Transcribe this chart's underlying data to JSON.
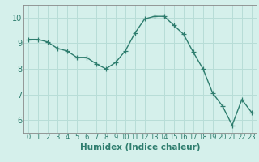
{
  "x": [
    0,
    1,
    2,
    3,
    4,
    5,
    6,
    7,
    8,
    9,
    10,
    11,
    12,
    13,
    14,
    15,
    16,
    17,
    18,
    19,
    20,
    21,
    22,
    23
  ],
  "y": [
    9.15,
    9.15,
    9.05,
    8.8,
    8.7,
    8.45,
    8.45,
    8.2,
    8.0,
    8.25,
    8.7,
    9.4,
    9.95,
    10.05,
    10.05,
    9.7,
    9.35,
    8.65,
    8.0,
    7.05,
    6.55,
    5.8,
    6.8,
    6.3
  ],
  "line_color": "#2e7d6e",
  "marker": "+",
  "markersize": 4,
  "linewidth": 1.0,
  "background_color": "#d5f0eb",
  "grid_color": "#b8ddd7",
  "xlabel": "Humidex (Indice chaleur)",
  "xlabel_fontsize": 7.5,
  "xlabel_fontweight": "bold",
  "ylim": [
    5.5,
    10.5
  ],
  "xlim": [
    -0.5,
    23.5
  ],
  "yticks": [
    6,
    7,
    8,
    9,
    10
  ],
  "xtick_fontsize": 6,
  "ytick_fontsize": 7,
  "tick_color": "#2e7d6e",
  "spine_color": "#888888"
}
